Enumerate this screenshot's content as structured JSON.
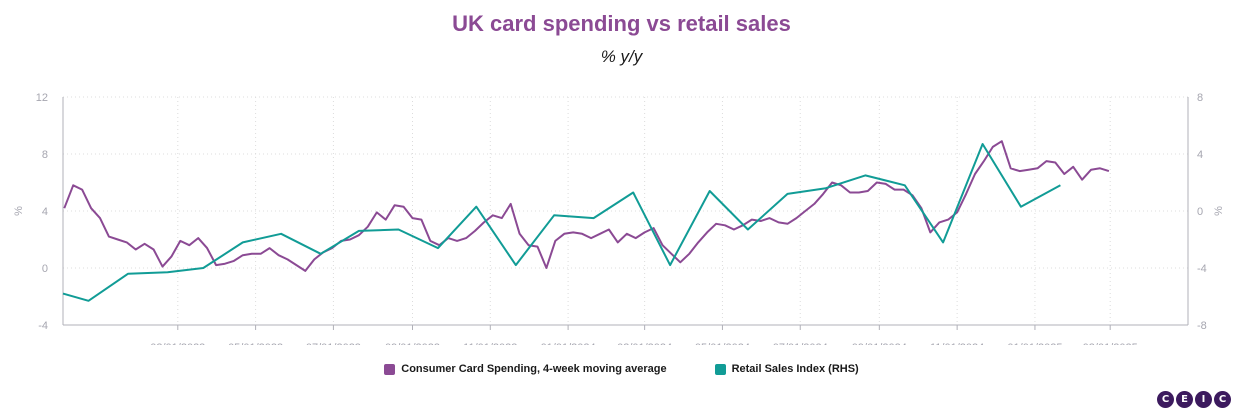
{
  "title": "UK card spending vs retail sales",
  "subtitle": "% y/y",
  "colors": {
    "series1": "#8b4a94",
    "series2": "#119c96",
    "grid": "#dcdcdc",
    "axis": "#b0b0b8",
    "title": "#8b4a94"
  },
  "logo": [
    "C",
    "E",
    "I",
    "C"
  ],
  "chart_data": {
    "type": "line",
    "x_ticks": [
      "03/01/2023",
      "05/01/2023",
      "07/01/2023",
      "09/01/2023",
      "11/01/2023",
      "01/01/2024",
      "03/01/2024",
      "05/01/2024",
      "07/01/2024",
      "09/01/2024",
      "11/01/2024",
      "01/01/2025",
      "03/01/2025"
    ],
    "xlim": [
      "2022-12-01",
      "2025-05-01"
    ],
    "y_left": {
      "label": "%",
      "ticks": [
        -4,
        0,
        4,
        8,
        12
      ],
      "ylim": [
        -4,
        12
      ]
    },
    "y_right": {
      "label": "%",
      "ticks": [
        -8,
        -4,
        0,
        4,
        8
      ],
      "ylim": [
        -8,
        8
      ]
    },
    "grid": true,
    "legend_position": "bottom",
    "series": [
      {
        "name": "Consumer Card Spending, 4-week moving average",
        "axis": "left",
        "points": [
          [
            "2022-12-02",
            4.2
          ],
          [
            "2022-12-09",
            5.8
          ],
          [
            "2022-12-16",
            5.5
          ],
          [
            "2022-12-23",
            4.2
          ],
          [
            "2022-12-30",
            3.5
          ],
          [
            "2023-01-06",
            2.2
          ],
          [
            "2023-01-13",
            2.0
          ],
          [
            "2023-01-20",
            1.8
          ],
          [
            "2023-01-27",
            1.3
          ],
          [
            "2023-02-03",
            1.7
          ],
          [
            "2023-02-10",
            1.3
          ],
          [
            "2023-02-17",
            0.1
          ],
          [
            "2023-02-24",
            0.8
          ],
          [
            "2023-03-03",
            1.9
          ],
          [
            "2023-03-10",
            1.6
          ],
          [
            "2023-03-17",
            2.1
          ],
          [
            "2023-03-24",
            1.4
          ],
          [
            "2023-03-31",
            0.2
          ],
          [
            "2023-04-07",
            0.3
          ],
          [
            "2023-04-14",
            0.5
          ],
          [
            "2023-04-21",
            0.9
          ],
          [
            "2023-04-28",
            1.0
          ],
          [
            "2023-05-05",
            1.0
          ],
          [
            "2023-05-12",
            1.4
          ],
          [
            "2023-05-19",
            0.9
          ],
          [
            "2023-05-26",
            0.6
          ],
          [
            "2023-06-02",
            0.2
          ],
          [
            "2023-06-09",
            -0.2
          ],
          [
            "2023-06-16",
            0.6
          ],
          [
            "2023-06-23",
            1.1
          ],
          [
            "2023-06-30",
            1.4
          ],
          [
            "2023-07-07",
            1.9
          ],
          [
            "2023-07-14",
            2.0
          ],
          [
            "2023-07-21",
            2.3
          ],
          [
            "2023-07-28",
            2.9
          ],
          [
            "2023-08-04",
            3.9
          ],
          [
            "2023-08-11",
            3.4
          ],
          [
            "2023-08-18",
            4.4
          ],
          [
            "2023-08-25",
            4.3
          ],
          [
            "2023-09-01",
            3.5
          ],
          [
            "2023-09-08",
            3.4
          ],
          [
            "2023-09-15",
            1.9
          ],
          [
            "2023-09-22",
            1.6
          ],
          [
            "2023-09-29",
            2.1
          ],
          [
            "2023-10-06",
            1.9
          ],
          [
            "2023-10-13",
            2.1
          ],
          [
            "2023-10-20",
            2.6
          ],
          [
            "2023-10-27",
            3.2
          ],
          [
            "2023-11-03",
            3.7
          ],
          [
            "2023-11-10",
            3.5
          ],
          [
            "2023-11-17",
            4.5
          ],
          [
            "2023-11-24",
            2.4
          ],
          [
            "2023-12-01",
            1.6
          ],
          [
            "2023-12-08",
            1.5
          ],
          [
            "2023-12-15",
            0.0
          ],
          [
            "2023-12-22",
            1.9
          ],
          [
            "2023-12-29",
            2.4
          ],
          [
            "2024-01-05",
            2.5
          ],
          [
            "2024-01-12",
            2.4
          ],
          [
            "2024-01-19",
            2.1
          ],
          [
            "2024-01-26",
            2.4
          ],
          [
            "2024-02-02",
            2.7
          ],
          [
            "2024-02-09",
            1.8
          ],
          [
            "2024-02-16",
            2.4
          ],
          [
            "2024-02-23",
            2.1
          ],
          [
            "2024-03-01",
            2.5
          ],
          [
            "2024-03-08",
            2.8
          ],
          [
            "2024-03-15",
            1.6
          ],
          [
            "2024-03-22",
            1.0
          ],
          [
            "2024-03-29",
            0.4
          ],
          [
            "2024-04-05",
            1.0
          ],
          [
            "2024-04-12",
            1.8
          ],
          [
            "2024-04-19",
            2.5
          ],
          [
            "2024-04-26",
            3.1
          ],
          [
            "2024-05-03",
            3.0
          ],
          [
            "2024-05-10",
            2.7
          ],
          [
            "2024-05-17",
            3.0
          ],
          [
            "2024-05-24",
            3.4
          ],
          [
            "2024-05-31",
            3.3
          ],
          [
            "2024-06-07",
            3.5
          ],
          [
            "2024-06-14",
            3.2
          ],
          [
            "2024-06-21",
            3.1
          ],
          [
            "2024-06-28",
            3.5
          ],
          [
            "2024-07-05",
            4.0
          ],
          [
            "2024-07-12",
            4.5
          ],
          [
            "2024-07-19",
            5.2
          ],
          [
            "2024-07-26",
            6.0
          ],
          [
            "2024-08-02",
            5.8
          ],
          [
            "2024-08-09",
            5.3
          ],
          [
            "2024-08-16",
            5.3
          ],
          [
            "2024-08-23",
            5.4
          ],
          [
            "2024-08-30",
            6.0
          ],
          [
            "2024-09-06",
            5.9
          ],
          [
            "2024-09-13",
            5.5
          ],
          [
            "2024-09-20",
            5.5
          ],
          [
            "2024-09-27",
            5.1
          ],
          [
            "2024-10-04",
            4.2
          ],
          [
            "2024-10-11",
            2.5
          ],
          [
            "2024-10-18",
            3.2
          ],
          [
            "2024-10-25",
            3.4
          ],
          [
            "2024-11-01",
            3.9
          ],
          [
            "2024-11-08",
            5.2
          ],
          [
            "2024-11-15",
            6.6
          ],
          [
            "2024-11-22",
            7.5
          ],
          [
            "2024-11-29",
            8.5
          ],
          [
            "2024-12-06",
            8.9
          ],
          [
            "2024-12-13",
            7.0
          ],
          [
            "2024-12-20",
            6.8
          ],
          [
            "2024-12-27",
            6.9
          ],
          [
            "2025-01-03",
            7.0
          ],
          [
            "2025-01-10",
            7.5
          ],
          [
            "2025-01-17",
            7.4
          ],
          [
            "2025-01-24",
            6.6
          ],
          [
            "2025-01-31",
            7.1
          ],
          [
            "2025-02-07",
            6.2
          ],
          [
            "2025-02-14",
            6.9
          ],
          [
            "2025-02-21",
            7.0
          ],
          [
            "2025-02-28",
            6.8
          ]
        ]
      },
      {
        "name": "Retail Sales Index (RHS)",
        "axis": "right",
        "points": [
          [
            "2022-12-01",
            -5.8
          ],
          [
            "2022-12-21",
            -6.3
          ],
          [
            "2023-01-21",
            -4.4
          ],
          [
            "2023-02-21",
            -4.3
          ],
          [
            "2023-03-21",
            -4.0
          ],
          [
            "2023-04-21",
            -2.2
          ],
          [
            "2023-05-21",
            -1.6
          ],
          [
            "2023-06-21",
            -3.0
          ],
          [
            "2023-07-21",
            -1.4
          ],
          [
            "2023-08-21",
            -1.3
          ],
          [
            "2023-09-21",
            -2.6
          ],
          [
            "2023-10-21",
            0.3
          ],
          [
            "2023-11-21",
            -3.8
          ],
          [
            "2023-12-21",
            -0.3
          ],
          [
            "2024-01-21",
            -0.5
          ],
          [
            "2024-02-21",
            1.3
          ],
          [
            "2024-03-21",
            -3.8
          ],
          [
            "2024-04-21",
            1.4
          ],
          [
            "2024-05-21",
            -1.3
          ],
          [
            "2024-06-21",
            1.2
          ],
          [
            "2024-07-21",
            1.6
          ],
          [
            "2024-08-21",
            2.5
          ],
          [
            "2024-09-21",
            1.8
          ],
          [
            "2024-10-21",
            -2.2
          ],
          [
            "2024-11-21",
            4.7
          ],
          [
            "2024-12-21",
            0.3
          ],
          [
            "2025-01-21",
            1.8
          ]
        ]
      }
    ]
  }
}
